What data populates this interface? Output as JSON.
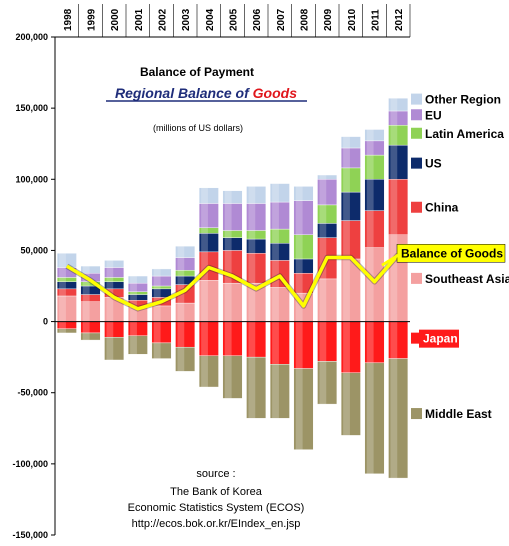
{
  "chart_data": {
    "type": "bar",
    "stacked": true,
    "title": "Balance of Payment",
    "subtitle": {
      "prefix": "Regional Balance of ",
      "highlight": "Goods"
    },
    "units": "(millions of US dollars)",
    "source_lines": [
      "source :",
      "The Bank of Korea",
      "Economic Statistics System (ECOS)",
      "http://ecos.bok.or.kr/EIndex_en.jsp"
    ],
    "categories": [
      "1998",
      "1999",
      "2000",
      "2001",
      "2002",
      "2003",
      "2004",
      "2005",
      "2006",
      "2007",
      "2008",
      "2009",
      "2010",
      "2011",
      "2012"
    ],
    "ylim": [
      -150000,
      200000
    ],
    "yticks": [
      "200,000",
      "150,000",
      "100,000",
      "50,000",
      "0",
      "-50,000",
      "-100,000",
      "-150,000"
    ],
    "ytick_values": [
      200000,
      150000,
      100000,
      50000,
      0,
      -50000,
      -100000,
      -150000
    ],
    "grid": false,
    "legend_position": "right",
    "series": [
      {
        "name": "Southeast Asia",
        "color": "#f4a0a0",
        "values": [
          18000,
          14000,
          17000,
          10000,
          11000,
          13000,
          29000,
          27000,
          27000,
          24000,
          20000,
          30000,
          44000,
          52000,
          61000
        ]
      },
      {
        "name": "China",
        "color": "#ee4040",
        "values": [
          5000,
          5000,
          6000,
          5000,
          6000,
          13000,
          20000,
          23000,
          21000,
          19000,
          14000,
          29000,
          27000,
          26000,
          39000
        ]
      },
      {
        "name": "US",
        "color": "#0d2b6b",
        "values": [
          5000,
          6000,
          5000,
          4000,
          6000,
          6000,
          13000,
          9000,
          10000,
          12000,
          10000,
          10000,
          20000,
          22000,
          24000
        ]
      },
      {
        "name": "Latin America",
        "color": "#8fd255",
        "values": [
          3000,
          3000,
          3000,
          2000,
          2000,
          4000,
          4000,
          5000,
          6000,
          10000,
          17000,
          13000,
          17000,
          17000,
          14000
        ]
      },
      {
        "name": "EU",
        "color": "#b08ad4",
        "values": [
          7000,
          6000,
          7000,
          6000,
          7000,
          9000,
          17000,
          19000,
          19000,
          19000,
          24000,
          18000,
          14000,
          10000,
          10000
        ]
      },
      {
        "name": "Other Region",
        "color": "#c2d4ea",
        "values": [
          10000,
          5000,
          5000,
          5000,
          5000,
          8000,
          11000,
          9000,
          12000,
          13000,
          10000,
          3000,
          8000,
          8000,
          9000
        ]
      },
      {
        "name": "Japan",
        "color": "#ff1a1a",
        "values": [
          -5000,
          -8000,
          -11000,
          -10000,
          -15000,
          -18000,
          -24000,
          -24000,
          -25000,
          -30000,
          -33000,
          -28000,
          -36000,
          -29000,
          -26000
        ]
      },
      {
        "name": "Middle East",
        "color": "#9c9466",
        "values": [
          -3000,
          -5000,
          -16000,
          -13000,
          -11000,
          -17000,
          -22000,
          -30000,
          -43000,
          -38000,
          -57000,
          -30000,
          -44000,
          -78000,
          -84000
        ]
      }
    ],
    "line_series": {
      "name": "Balance of Goods",
      "color": "#ffff00",
      "values": [
        39000,
        29000,
        17000,
        9000,
        14000,
        22000,
        38000,
        32000,
        23000,
        32000,
        11000,
        45000,
        45000,
        28000,
        47000
      ]
    },
    "right_labels": [
      {
        "text": "Other Region",
        "kind": "swatch",
        "color": "#c2d4ea",
        "value": 156000
      },
      {
        "text": "EU",
        "kind": "swatch",
        "color": "#b08ad4",
        "value": 145000
      },
      {
        "text": "Latin America",
        "kind": "swatch",
        "color": "#8fd255",
        "value": 132000
      },
      {
        "text": "US",
        "kind": "swatch",
        "color": "#0d2b6b",
        "value": 111000
      },
      {
        "text": "China",
        "kind": "swatch",
        "color": "#ee4040",
        "value": 80000
      },
      {
        "text": "Balance of Goods",
        "kind": "boxed",
        "color": "#ffff00",
        "value": 48000
      },
      {
        "text": "Southeast Asia",
        "kind": "swatch",
        "color": "#f4a0a0",
        "value": 30000
      },
      {
        "text": "Japan",
        "kind": "boxed-red",
        "color": "#ff1a1a",
        "value": -12000
      },
      {
        "text": "Middle East",
        "kind": "swatch",
        "color": "#9c9466",
        "value": -65000
      }
    ]
  }
}
